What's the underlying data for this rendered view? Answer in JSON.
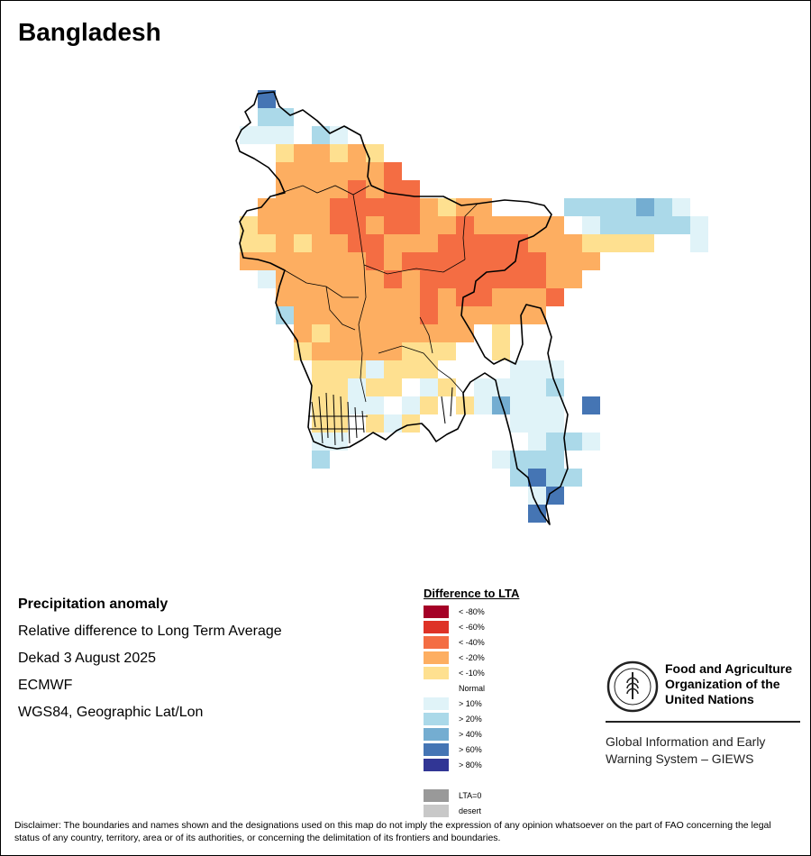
{
  "title": "Bangladesh",
  "info": {
    "heading": "Precipitation anomaly",
    "line1": "Relative difference to Long Term Average",
    "line2": "Dekad 3 August 2025",
    "line3": "ECMWF",
    "line4": "WGS84, Geographic Lat/Lon"
  },
  "legend": {
    "title": "Difference to LTA",
    "items": [
      {
        "label": "< -80%",
        "color": "#a50026"
      },
      {
        "label": "< -60%",
        "color": "#de3226"
      },
      {
        "label": "< -40%",
        "color": "#f46d43"
      },
      {
        "label": "< -20%",
        "color": "#fdae61"
      },
      {
        "label": "< -10%",
        "color": "#fee090"
      },
      {
        "label": "Normal",
        "color": "#ffffff"
      },
      {
        "label": "> 10%",
        "color": "#e0f3f8"
      },
      {
        "label": "> 20%",
        "color": "#abd9e9"
      },
      {
        "label": "> 40%",
        "color": "#74add1"
      },
      {
        "label": "> 60%",
        "color": "#4575b4"
      },
      {
        "label": "> 80%",
        "color": "#313695"
      }
    ],
    "extra": [
      {
        "label": "LTA=0",
        "color": "#999999"
      },
      {
        "label": "desert",
        "color": "#c8c8c8"
      }
    ]
  },
  "fao": {
    "name_line1": "Food and Agriculture",
    "name_line2": "Organization of the",
    "name_line3": "United Nations",
    "emblem_letters": "FAO",
    "motto": "FIAT PANIS",
    "giews_line1": "Global Information and Early",
    "giews_line2": "Warning System – GIEWS"
  },
  "disclaimer": "Disclaimer: The boundaries and names shown and the designations used on this map do not imply the expression of any opinion whatsoever on the part of FAO concerning the legal status of any country, territory, area or of its authorities, or concerning the delimitation of its frontiers and boundaries."
}
